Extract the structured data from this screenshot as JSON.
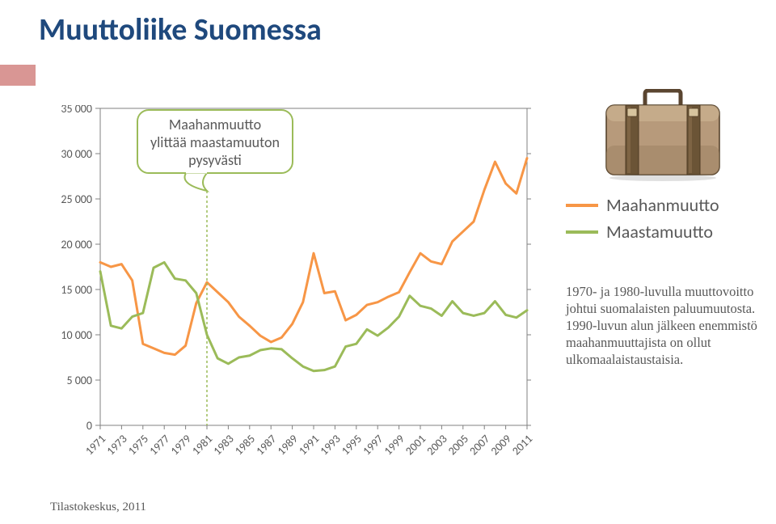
{
  "title": "Muuttoliike Suomessa",
  "chart": {
    "type": "line",
    "background_color": "#ffffff",
    "ylabel_color": "#595959",
    "axis_color": "#808080",
    "tick_fontsize": 14,
    "ylim": [
      0,
      35000
    ],
    "ytick_step": 5000,
    "yticks": [
      {
        "v": 0,
        "label": "0"
      },
      {
        "v": 5000,
        "label": "5 000"
      },
      {
        "v": 10000,
        "label": "10 000"
      },
      {
        "v": 15000,
        "label": "15 000"
      },
      {
        "v": 20000,
        "label": "20 000"
      },
      {
        "v": 25000,
        "label": "25 000"
      },
      {
        "v": 30000,
        "label": "30 000"
      },
      {
        "v": 35000,
        "label": "35 000"
      }
    ],
    "xticks": [
      1971,
      1973,
      1975,
      1977,
      1979,
      1981,
      1983,
      1985,
      1987,
      1989,
      1991,
      1993,
      1995,
      1997,
      1999,
      2001,
      2003,
      2005,
      2007,
      2009,
      2011
    ],
    "years": [
      1971,
      1972,
      1973,
      1974,
      1975,
      1976,
      1977,
      1978,
      1979,
      1980,
      1981,
      1982,
      1983,
      1984,
      1985,
      1986,
      1987,
      1988,
      1989,
      1990,
      1991,
      1992,
      1993,
      1994,
      1995,
      1996,
      1997,
      1998,
      1999,
      2000,
      2001,
      2002,
      2003,
      2004,
      2005,
      2006,
      2007,
      2008,
      2009,
      2010,
      2011
    ],
    "series": [
      {
        "name": "Maahanmuutto",
        "color": "#f79646",
        "line_width": 3,
        "values": [
          18000,
          17500,
          17800,
          16000,
          9000,
          8500,
          8000,
          7800,
          8800,
          13500,
          15800,
          14700,
          13600,
          12000,
          11000,
          9900,
          9200,
          9700,
          11200,
          13600,
          19000,
          14600,
          14800,
          11600,
          12200,
          13300,
          13600,
          14200,
          14700,
          16900,
          19000,
          18100,
          17800,
          20300,
          21400,
          22500,
          26000,
          29100,
          26700,
          25600,
          29500
        ]
      },
      {
        "name": "Maastamuutto",
        "color": "#9bbb59",
        "line_width": 3,
        "values": [
          17000,
          11000,
          10700,
          12000,
          12400,
          17400,
          18000,
          16200,
          16000,
          14600,
          10000,
          7400,
          6800,
          7500,
          7700,
          8300,
          8500,
          8400,
          7400,
          6500,
          6000,
          6100,
          6500,
          8700,
          9000,
          10600,
          9900,
          10800,
          12000,
          14300,
          13200,
          12900,
          12100,
          13700,
          12400,
          12100,
          12400,
          13700,
          12200,
          11900,
          12700
        ]
      }
    ],
    "callout": {
      "text_lines": [
        "Maahanmuutto",
        "ylittää maastamuuton",
        "pysyvästi"
      ],
      "anchor_year": 1981,
      "fill": "#ffffff",
      "stroke": "#9bbb59",
      "text_color": "#595959",
      "fontsize": 18
    }
  },
  "legend": {
    "items": [
      {
        "label": "Maahanmuutto",
        "color": "#f79646"
      },
      {
        "label": "Maastamuutto",
        "color": "#9bbb59"
      }
    ],
    "fontsize": 22
  },
  "side_note": "1970- ja 1980-luvulla muuttovoitto johtui suomalaisten paluu­muutosta.\n1990-luvun alun jälkeen enemmistö maahan­muuttajista on ollut ulkomaalaistaustaisia.",
  "source": "Tilastokeskus, 2011",
  "icon": {
    "name": "suitcase-icon",
    "body_color": "#b79a7b",
    "body_shadow": "#9e8365",
    "strap_color": "#6b5436",
    "handle_color": "#5a4530",
    "outline": "#4e3b24"
  }
}
